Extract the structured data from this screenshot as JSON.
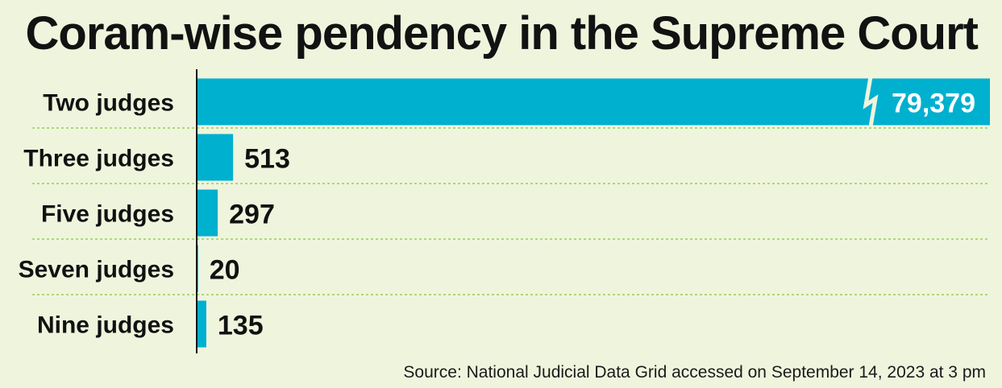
{
  "title": "Coram-wise pendency in the Supreme Court",
  "source": "Source: National Judicial Data Grid accessed on September 14, 2023 at 3 pm",
  "colors": {
    "background": "#eff5dd",
    "bar": "#00b0cf",
    "gridline": "#9ccc5a",
    "axis": "#111111",
    "text": "#111111"
  },
  "chart_data": {
    "type": "bar",
    "orientation": "horizontal",
    "axis_break": true,
    "categories": [
      "Two judges",
      "Three judges",
      "Five judges",
      "Seven judges",
      "Nine judges"
    ],
    "values": [
      79379,
      513,
      297,
      20,
      135
    ],
    "labels": [
      "79,379",
      "513",
      "297",
      "20",
      "135"
    ],
    "title": "Coram-wise pendency in the Supreme Court",
    "xlabel": "",
    "ylabel": "",
    "grid": true
  }
}
